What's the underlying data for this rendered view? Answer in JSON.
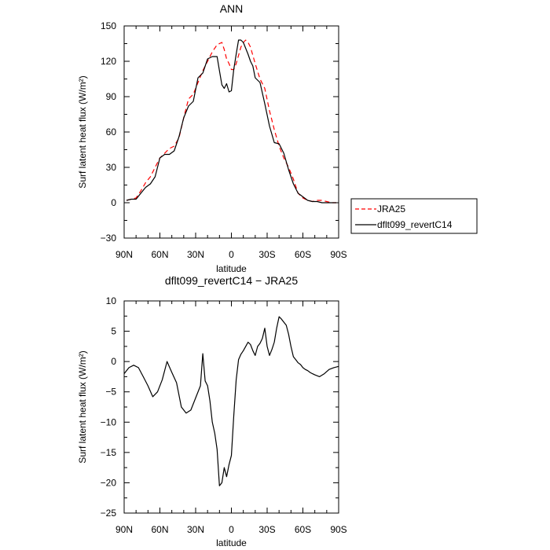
{
  "chart_data": [
    {
      "type": "line",
      "title": "ANN",
      "xlabel": "latitude",
      "ylabel": "Surf latent heat flux (W/m²)",
      "xlim": [
        90,
        -90
      ],
      "ylim": [
        -30,
        150
      ],
      "x_ticks": [
        90,
        60,
        30,
        0,
        -30,
        -60,
        -90
      ],
      "x_tick_labels": [
        "90N",
        "60N",
        "30N",
        "0",
        "30S",
        "60S",
        "90S"
      ],
      "y_ticks": [
        -30,
        0,
        30,
        60,
        90,
        120,
        150
      ],
      "y_tick_labels": [
        "−30",
        "0",
        "30",
        "60",
        "90",
        "120",
        "150"
      ],
      "legend": "right",
      "series": [
        {
          "name": "JRA25",
          "color": "#ff0000",
          "dash": "dashed",
          "x": [
            88,
            84,
            80,
            76,
            72,
            68,
            64,
            60,
            56,
            52,
            48,
            44,
            40,
            36,
            32,
            28,
            24,
            20,
            16,
            12,
            8,
            6,
            4,
            2,
            0,
            -2,
            -4,
            -6,
            -8,
            -10,
            -12,
            -14,
            -16,
            -18,
            -20,
            -24,
            -28,
            -32,
            -36,
            -40,
            -44,
            -48,
            -52,
            -56,
            -60,
            -64,
            -68,
            -72,
            -76,
            -80,
            -84,
            -88
          ],
          "y": [
            2,
            3,
            4,
            10,
            17,
            22,
            30,
            38,
            42,
            46,
            48,
            55,
            72,
            88,
            92,
            102,
            112,
            120,
            128,
            134,
            136,
            130,
            122,
            118,
            113,
            113,
            118,
            125,
            132,
            136,
            138,
            136,
            132,
            125,
            118,
            105,
            97,
            78,
            62,
            48,
            38,
            30,
            20,
            8,
            4,
            2,
            1,
            2,
            2,
            1,
            0,
            0
          ]
        },
        {
          "name": "dflt099_revertC14",
          "color": "#000000",
          "dash": "solid",
          "x": [
            88,
            84,
            80,
            76,
            72,
            68,
            64,
            60,
            56,
            52,
            48,
            44,
            40,
            36,
            32,
            28,
            24,
            20,
            16,
            12,
            10,
            8,
            6,
            4,
            2,
            0,
            -2,
            -4,
            -6,
            -8,
            -10,
            -12,
            -14,
            -16,
            -18,
            -20,
            -24,
            -28,
            -32,
            -36,
            -40,
            -44,
            -48,
            -52,
            -56,
            -60,
            -64,
            -68,
            -72,
            -76,
            -80,
            -84,
            -88
          ],
          "y": [
            2,
            3,
            3,
            8,
            13,
            16,
            22,
            38,
            41,
            41,
            44,
            56,
            72,
            82,
            86,
            106,
            110,
            122,
            124,
            124,
            112,
            100,
            97,
            101,
            94,
            95,
            113,
            126,
            138,
            138,
            136,
            131,
            126,
            120,
            116,
            106,
            102,
            84,
            65,
            51,
            50,
            42,
            28,
            16,
            8,
            5,
            2,
            1,
            1,
            0,
            0,
            0,
            0
          ]
        }
      ]
    },
    {
      "type": "line",
      "title": "dflt099_revertC14 − JRA25",
      "xlabel": "latitude",
      "ylabel": "Surf latent heat flux (W/m²)",
      "xlim": [
        90,
        -90
      ],
      "ylim": [
        -25,
        10
      ],
      "x_ticks": [
        90,
        60,
        30,
        0,
        -30,
        -60,
        -90
      ],
      "x_tick_labels": [
        "90N",
        "60N",
        "30N",
        "0",
        "30S",
        "60S",
        "90S"
      ],
      "y_ticks": [
        -25,
        -20,
        -15,
        -10,
        -5,
        0,
        5,
        10
      ],
      "y_tick_labels": [
        "−25",
        "−20",
        "−15",
        "−10",
        "−5",
        "0",
        "5",
        "10"
      ],
      "series": [
        {
          "color": "#000000",
          "dash": "solid",
          "x": [
            90,
            86,
            82,
            78,
            74,
            70,
            66,
            62,
            58,
            54,
            50,
            46,
            42,
            38,
            34,
            30,
            26,
            24,
            22,
            20,
            18,
            16,
            14,
            12,
            10,
            8,
            6,
            4,
            2,
            0,
            -2,
            -4,
            -6,
            -8,
            -10,
            -12,
            -14,
            -16,
            -18,
            -20,
            -22,
            -24,
            -26,
            -28,
            -30,
            -32,
            -34,
            -36,
            -38,
            -40,
            -42,
            -44,
            -46,
            -48,
            -50,
            -52,
            -54,
            -56,
            -58,
            -60,
            -62,
            -64,
            -66,
            -68,
            -70,
            -74,
            -78,
            -82,
            -86,
            -90
          ],
          "y": [
            -2,
            -1,
            -0.6,
            -1,
            -2.5,
            -4,
            -5.8,
            -5,
            -3,
            0,
            -1.8,
            -3.5,
            -7.5,
            -8.5,
            -8,
            -6,
            -4,
            1.3,
            -3.2,
            -4,
            -6.5,
            -10,
            -11.8,
            -14.5,
            -20.5,
            -20,
            -17.5,
            -19,
            -17,
            -15.5,
            -9,
            -3,
            0.3,
            1.2,
            1.8,
            2.5,
            3.2,
            2.8,
            1.8,
            1,
            2.5,
            3,
            3.8,
            5.5,
            2.5,
            1,
            2,
            3.2,
            5.5,
            7.4,
            7,
            6.5,
            6,
            4.5,
            2.5,
            0.8,
            0.3,
            -0.2,
            -0.5,
            -1,
            -1.3,
            -1.5,
            -1.8,
            -2,
            -2.2,
            -2.5,
            -2,
            -1.3,
            -1,
            -0.8
          ]
        }
      ]
    }
  ]
}
